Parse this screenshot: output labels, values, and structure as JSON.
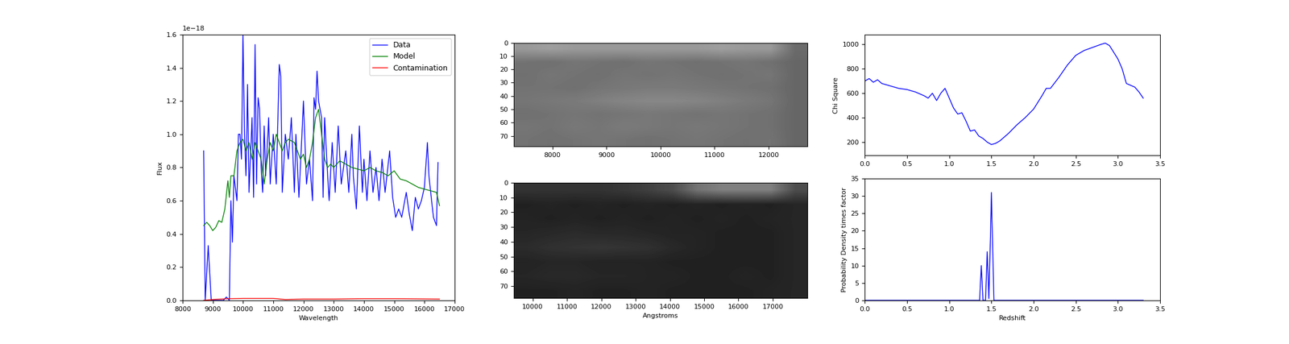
{
  "chart_data": [
    {
      "type": "line",
      "x_label": "Wavelength",
      "y_label": "Flux",
      "annotations": [
        "1e−18"
      ],
      "xlim": [
        8000,
        17000
      ],
      "xticks": [
        8000,
        9000,
        10000,
        11000,
        12000,
        13000,
        14000,
        15000,
        16000,
        17000
      ],
      "ylim": [
        0.0,
        1.6
      ],
      "yticks": [
        0.0,
        0.2,
        0.4,
        0.6,
        0.8,
        1.0,
        1.2,
        1.4,
        1.6
      ],
      "legend": "upper right",
      "series": [
        {
          "name": "Data",
          "color": "#0000ff",
          "x": [
            8700,
            8750,
            8850,
            8950,
            9050,
            9350,
            9450,
            9550,
            9600,
            9650,
            9700,
            9800,
            9850,
            9900,
            9950,
            10000,
            10050,
            10100,
            10150,
            10200,
            10300,
            10350,
            10400,
            10450,
            10500,
            10550,
            10600,
            10650,
            10700,
            10750,
            10850,
            10900,
            11000,
            11100,
            11200,
            11250,
            11300,
            11400,
            11500,
            11600,
            11700,
            11750,
            11850,
            11950,
            12000,
            12100,
            12200,
            12300,
            12350,
            12400,
            12450,
            12500,
            12600,
            12650,
            12700,
            12800,
            12850,
            12950,
            13050,
            13150,
            13250,
            13400,
            13500,
            13600,
            13650,
            13750,
            13850,
            13950,
            14000,
            14100,
            14200,
            14300,
            14400,
            14500,
            14600,
            14700,
            14850,
            14950,
            15050,
            15150,
            15250,
            15400,
            15500,
            15600,
            15700,
            15800,
            15900,
            16000,
            16100,
            16150,
            16250,
            16300,
            16400,
            16450
          ],
          "values": [
            0.9,
            0.0,
            0.33,
            0.0,
            0.0,
            0.0,
            0.02,
            0.0,
            0.6,
            0.35,
            0.75,
            0.6,
            1.0,
            1.0,
            0.85,
            1.6,
            1.0,
            0.75,
            1.3,
            0.65,
            1.1,
            0.62,
            1.54,
            0.7,
            1.22,
            1.15,
            0.8,
            0.65,
            1.05,
            0.75,
            1.1,
            0.7,
            1.0,
            0.7,
            1.42,
            1.35,
            0.65,
            1.0,
            0.85,
            1.1,
            0.65,
            1.0,
            0.62,
            1.0,
            1.2,
            0.7,
            0.85,
            0.6,
            1.22,
            1.15,
            1.38,
            1.2,
            1.1,
            0.62,
            1.1,
            0.75,
            0.6,
            0.95,
            0.65,
            1.05,
            0.7,
            0.9,
            0.65,
            1.0,
            0.75,
            0.55,
            1.05,
            0.65,
            0.85,
            0.6,
            0.9,
            0.65,
            0.8,
            0.6,
            0.85,
            0.65,
            0.9,
            0.62,
            0.5,
            0.55,
            0.5,
            0.65,
            0.52,
            0.42,
            0.62,
            0.55,
            0.6,
            0.68,
            0.95,
            0.75,
            0.58,
            0.5,
            0.45,
            0.83
          ]
        },
        {
          "name": "Model",
          "color": "#008000",
          "x": [
            8700,
            8800,
            8900,
            9000,
            9100,
            9200,
            9300,
            9400,
            9500,
            9550,
            9600,
            9700,
            9800,
            9900,
            10000,
            10100,
            10200,
            10300,
            10400,
            10500,
            10600,
            10700,
            10800,
            10900,
            11000,
            11100,
            11200,
            11300,
            11400,
            11500,
            11700,
            11800,
            11900,
            12000,
            12100,
            12200,
            12300,
            12400,
            12500,
            12600,
            12700,
            12800,
            12900,
            13000,
            13200,
            13400,
            13600,
            13800,
            14000,
            14200,
            14400,
            14600,
            14800,
            15000,
            15200,
            15400,
            15600,
            15800,
            16000,
            16200,
            16400,
            16500
          ],
          "values": [
            0.45,
            0.47,
            0.45,
            0.42,
            0.44,
            0.48,
            0.47,
            0.55,
            0.72,
            0.62,
            0.75,
            0.75,
            0.9,
            0.95,
            0.97,
            0.9,
            0.95,
            0.85,
            0.95,
            0.9,
            0.85,
            0.7,
            0.85,
            0.95,
            0.9,
            1.0,
            0.95,
            0.9,
            0.95,
            0.97,
            0.95,
            0.9,
            0.85,
            0.88,
            0.8,
            0.85,
            0.95,
            1.1,
            1.15,
            1.0,
            0.85,
            0.8,
            0.82,
            0.8,
            0.84,
            0.82,
            0.8,
            0.79,
            0.78,
            0.8,
            0.78,
            0.77,
            0.75,
            0.78,
            0.73,
            0.72,
            0.7,
            0.68,
            0.67,
            0.66,
            0.65,
            0.57
          ]
        },
        {
          "name": "Contamination",
          "color": "#ff0000",
          "x": [
            8700,
            9000,
            9500,
            10000,
            11000,
            11400,
            12000,
            13000,
            14000,
            15000,
            16500
          ],
          "values": [
            0.0,
            0.005,
            0.01,
            0.012,
            0.012,
            0.005,
            0.008,
            0.008,
            0.01,
            0.01,
            0.008
          ]
        }
      ]
    },
    {
      "type": "heatmap",
      "xlim": [
        7285,
        12715
      ],
      "xticks": [
        8000,
        9000,
        10000,
        11000,
        12000
      ],
      "ylim": [
        78,
        0
      ],
      "yticks": [
        0,
        10,
        20,
        30,
        40,
        50,
        60,
        70
      ],
      "color_range": [
        0,
        1
      ],
      "cells": [
        [
          0.6,
          0.62,
          0.6,
          0.6,
          0.6,
          0.6,
          0.6,
          0.6,
          0.62,
          0.6,
          0.6,
          0.42
        ],
        [
          0.45,
          0.44,
          0.46,
          0.45,
          0.44,
          0.46,
          0.45,
          0.44,
          0.45,
          0.46,
          0.44,
          0.4
        ],
        [
          0.44,
          0.46,
          0.45,
          0.44,
          0.46,
          0.45,
          0.46,
          0.45,
          0.44,
          0.45,
          0.46,
          0.4
        ],
        [
          0.45,
          0.45,
          0.44,
          0.46,
          0.47,
          0.48,
          0.48,
          0.47,
          0.46,
          0.45,
          0.44,
          0.4
        ],
        [
          0.46,
          0.47,
          0.48,
          0.5,
          0.52,
          0.53,
          0.53,
          0.52,
          0.5,
          0.48,
          0.46,
          0.4
        ],
        [
          0.44,
          0.45,
          0.46,
          0.45,
          0.46,
          0.47,
          0.46,
          0.45,
          0.46,
          0.45,
          0.44,
          0.4
        ],
        [
          0.46,
          0.45,
          0.47,
          0.46,
          0.48,
          0.47,
          0.46,
          0.47,
          0.46,
          0.45,
          0.44,
          0.4
        ],
        [
          0.45,
          0.44,
          0.45,
          0.46,
          0.45,
          0.44,
          0.45,
          0.46,
          0.45,
          0.44,
          0.45,
          0.4
        ]
      ]
    },
    {
      "type": "heatmap",
      "x_label": "Angstroms",
      "xlim": [
        9448,
        18007
      ],
      "xticks": [
        10000,
        11000,
        12000,
        13000,
        14000,
        15000,
        16000,
        17000
      ],
      "ylim": [
        78,
        0
      ],
      "yticks": [
        0,
        10,
        20,
        30,
        40,
        50,
        60,
        70
      ],
      "color_range": [
        0,
        1
      ],
      "cells": [
        [
          0.2,
          0.2,
          0.2,
          0.2,
          0.22,
          0.25,
          0.3,
          0.45,
          0.5,
          0.5,
          0.5,
          0.3
        ],
        [
          0.13,
          0.14,
          0.13,
          0.14,
          0.13,
          0.14,
          0.13,
          0.14,
          0.13,
          0.14,
          0.13,
          0.15
        ],
        [
          0.14,
          0.13,
          0.14,
          0.13,
          0.14,
          0.13,
          0.14,
          0.13,
          0.14,
          0.13,
          0.14,
          0.15
        ],
        [
          0.15,
          0.16,
          0.17,
          0.16,
          0.16,
          0.15,
          0.14,
          0.14,
          0.13,
          0.13,
          0.13,
          0.15
        ],
        [
          0.17,
          0.19,
          0.2,
          0.21,
          0.2,
          0.19,
          0.16,
          0.14,
          0.13,
          0.13,
          0.13,
          0.15
        ],
        [
          0.14,
          0.15,
          0.15,
          0.14,
          0.14,
          0.14,
          0.13,
          0.13,
          0.13,
          0.13,
          0.13,
          0.15
        ],
        [
          0.15,
          0.16,
          0.16,
          0.15,
          0.15,
          0.14,
          0.14,
          0.13,
          0.13,
          0.14,
          0.13,
          0.15
        ],
        [
          0.13,
          0.13,
          0.14,
          0.13,
          0.13,
          0.14,
          0.13,
          0.13,
          0.13,
          0.13,
          0.14,
          0.15
        ]
      ]
    },
    {
      "type": "line",
      "y_label": "Chi Square",
      "xlim": [
        0.0,
        3.5
      ],
      "xticks": [
        0.0,
        0.5,
        1.0,
        1.5,
        2.0,
        2.5,
        3.0,
        3.5
      ],
      "ylim": [
        90,
        1080
      ],
      "yticks": [
        200,
        400,
        600,
        800,
        1000
      ],
      "series": [
        {
          "color": "#0000ff",
          "x": [
            0.0,
            0.05,
            0.1,
            0.15,
            0.2,
            0.3,
            0.4,
            0.5,
            0.6,
            0.7,
            0.75,
            0.8,
            0.85,
            0.9,
            0.95,
            1.0,
            1.05,
            1.1,
            1.15,
            1.2,
            1.25,
            1.3,
            1.35,
            1.4,
            1.45,
            1.5,
            1.55,
            1.6,
            1.7,
            1.8,
            1.9,
            2.0,
            2.1,
            2.15,
            2.2,
            2.3,
            2.4,
            2.5,
            2.6,
            2.7,
            2.8,
            2.85,
            2.9,
            3.0,
            3.05,
            3.1,
            3.2,
            3.25,
            3.3
          ],
          "values": [
            700,
            720,
            690,
            710,
            680,
            660,
            640,
            630,
            610,
            580,
            560,
            600,
            540,
            600,
            640,
            560,
            480,
            430,
            440,
            370,
            290,
            300,
            250,
            230,
            200,
            180,
            190,
            210,
            270,
            340,
            400,
            470,
            580,
            640,
            640,
            730,
            830,
            910,
            950,
            975,
            1000,
            1010,
            990,
            880,
            800,
            680,
            650,
            610,
            560
          ]
        }
      ]
    },
    {
      "type": "line",
      "x_label": "Redshift",
      "y_label": "Probability Density times factor",
      "xlim": [
        0.0,
        3.5
      ],
      "xticks": [
        0.0,
        0.5,
        1.0,
        1.5,
        2.0,
        2.5,
        3.0,
        3.5
      ],
      "ylim": [
        0,
        35
      ],
      "yticks": [
        0,
        5,
        10,
        15,
        20,
        25,
        30,
        35
      ],
      "series": [
        {
          "color": "#0000ff",
          "x": [
            0.0,
            1.3,
            1.36,
            1.38,
            1.4,
            1.43,
            1.45,
            1.47,
            1.49,
            1.5,
            1.51,
            1.53,
            3.3
          ],
          "values": [
            0,
            0,
            0,
            10,
            0,
            0,
            14,
            0.5,
            20,
            31,
            20,
            0,
            0
          ]
        }
      ]
    }
  ]
}
